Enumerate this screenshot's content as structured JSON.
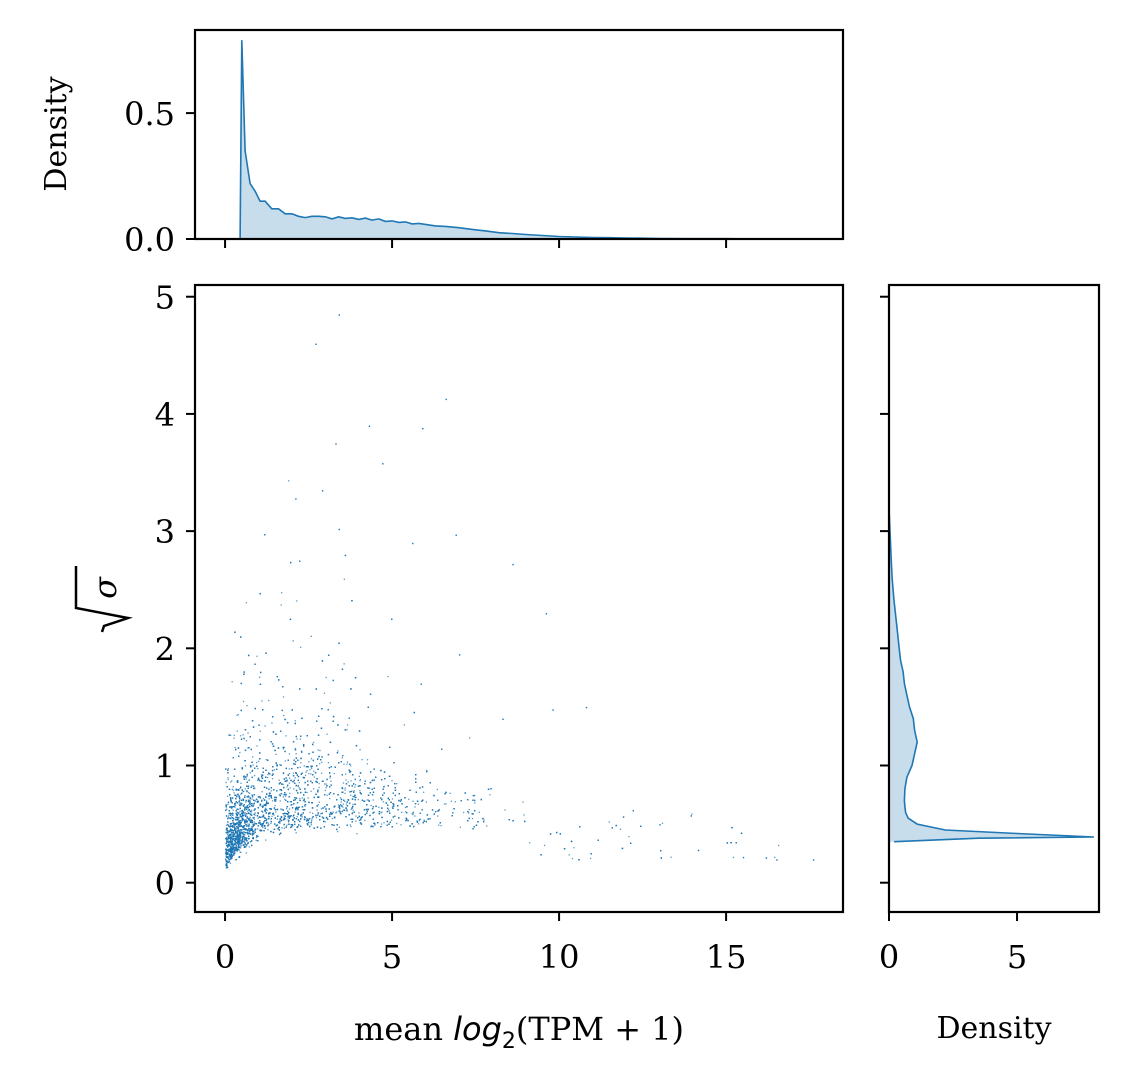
{
  "chart_data": {
    "type": "scatter",
    "color": "#1f77b4",
    "fill_alpha": 0.25,
    "joint": {
      "xlabel_prefix": "mean ",
      "xlabel_math": "log",
      "xlabel_sub": "2",
      "xlabel_suffix": "(TPM + 1)",
      "ylabel": "σ",
      "xlim": [
        -0.9,
        18.5
      ],
      "ylim": [
        -0.25,
        5.1
      ],
      "xticks": [
        0,
        5,
        10,
        15
      ],
      "xtick_labels": [
        "0",
        "5",
        "10",
        "15"
      ],
      "yticks": [
        0,
        1,
        2,
        3,
        4,
        5
      ],
      "ytick_labels": [
        "0",
        "1",
        "2",
        "3",
        "4",
        "5"
      ],
      "grid": false
    },
    "top_marginal": {
      "type": "area",
      "ylabel": "Density",
      "ylim": [
        0,
        0.83
      ],
      "yticks": [
        0,
        0.5
      ],
      "ytick_labels": [
        "0.0",
        "0.5"
      ],
      "x": [
        0.45,
        0.5,
        0.6,
        0.75,
        0.9,
        1.05,
        1.2,
        1.4,
        1.6,
        1.8,
        2.0,
        2.2,
        2.4,
        2.6,
        2.8,
        3.0,
        3.2,
        3.4,
        3.6,
        3.8,
        4.0,
        4.2,
        4.4,
        4.6,
        4.8,
        5.0,
        5.2,
        5.4,
        5.6,
        5.8,
        6.0,
        6.3,
        6.6,
        7.0,
        7.4,
        7.8,
        8.2,
        8.6,
        9.0,
        9.5,
        10.0,
        10.5,
        11.0,
        11.5,
        12.0,
        12.5,
        13.0,
        14.0,
        15.0,
        16.0,
        17.0,
        17.7
      ],
      "density": [
        0.0,
        0.79,
        0.35,
        0.22,
        0.19,
        0.15,
        0.15,
        0.12,
        0.12,
        0.1,
        0.1,
        0.09,
        0.085,
        0.09,
        0.09,
        0.088,
        0.08,
        0.088,
        0.082,
        0.084,
        0.078,
        0.083,
        0.075,
        0.08,
        0.07,
        0.072,
        0.066,
        0.068,
        0.06,
        0.062,
        0.058,
        0.052,
        0.05,
        0.045,
        0.038,
        0.032,
        0.025,
        0.022,
        0.018,
        0.014,
        0.01,
        0.008,
        0.006,
        0.005,
        0.004,
        0.003,
        0.002,
        0.001,
        0.001,
        0.0,
        0.0,
        0.0
      ]
    },
    "right_marginal": {
      "type": "area",
      "xlabel": "Density",
      "xlim": [
        0,
        8.2
      ],
      "xticks": [
        0,
        5
      ],
      "xtick_labels": [
        "0",
        "5"
      ],
      "y": [
        0.35,
        0.38,
        0.39,
        0.42,
        0.45,
        0.5,
        0.55,
        0.6,
        0.65,
        0.7,
        0.8,
        0.9,
        1.0,
        1.1,
        1.2,
        1.3,
        1.4,
        1.5,
        1.6,
        1.7,
        1.8,
        1.9,
        2.0,
        2.2,
        2.4,
        2.6,
        2.8,
        3.0,
        3.2
      ],
      "density": [
        0.2,
        3.5,
        8.0,
        5.0,
        2.2,
        1.1,
        0.75,
        0.65,
        0.62,
        0.6,
        0.62,
        0.7,
        0.9,
        1.0,
        1.1,
        1.0,
        0.95,
        0.8,
        0.7,
        0.6,
        0.55,
        0.45,
        0.4,
        0.3,
        0.2,
        0.12,
        0.08,
        0.04,
        0.0
      ]
    }
  }
}
